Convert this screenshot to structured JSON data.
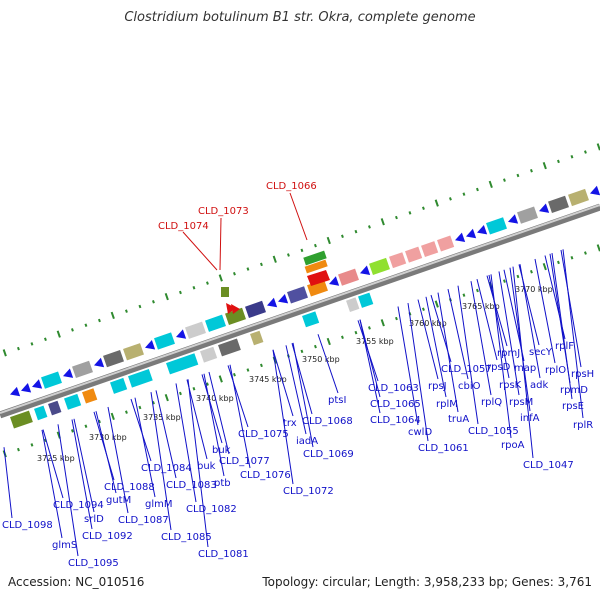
{
  "title": "Clostridium botulinum B1 str. Okra, complete genome",
  "footer": {
    "accession": "Accession: NC_010516",
    "topology": "Topology: circular; Length: 3,958,233 bp; Genes: 3,761"
  },
  "colors": {
    "label_blue": "#1010c8",
    "highlight_red": "#d01010",
    "backbone": "#8a8a8a",
    "tick_green": "#2f8a2f",
    "gene_blue": "#1414e6"
  },
  "kbp_labels": [
    "3725 kbp",
    "3730 kbp",
    "3735 kbp",
    "3740 kbp",
    "3745 kbp",
    "3750 kbp",
    "3755 kbp",
    "3760 kbp",
    "3765 kbp",
    "3770 kbp"
  ],
  "red_labels": [
    "CLD_1066",
    "CLD_1073",
    "CLD_1074"
  ],
  "gene_labels": [
    "CLD_1098",
    "glmS",
    "CLD_1094",
    "srlD",
    "CLD_1092",
    "CLD_1095",
    "CLD_1088",
    "gutM",
    "CLD_1087",
    "glmM",
    "CLD_1085",
    "CLD_1084",
    "CLD_1083",
    "CLD_1082",
    "buk",
    "ptb",
    "CLD_1081",
    "buk",
    "CLD_1077",
    "CLD_1076",
    "CLD_1075",
    "trx",
    "iadA",
    "CLD_1072",
    "CLD_1069",
    "CLD_1068",
    "ptsI",
    "CLD_1063",
    "CLD_1065",
    "CLD_1064",
    "cwlD",
    "CLD_1061",
    "rpsJ",
    "CLD_1057",
    "rplM",
    "cbiO",
    "truA",
    "rplQ",
    "CLD_1055",
    "rpsD",
    "rpoA",
    "rpmJ",
    "rpsK",
    "rpsM",
    "map",
    "infA",
    "adk",
    "secY",
    "rplO",
    "CLD_1047",
    "rplF",
    "rpsH",
    "rpmD",
    "rpsE",
    "rplR"
  ]
}
